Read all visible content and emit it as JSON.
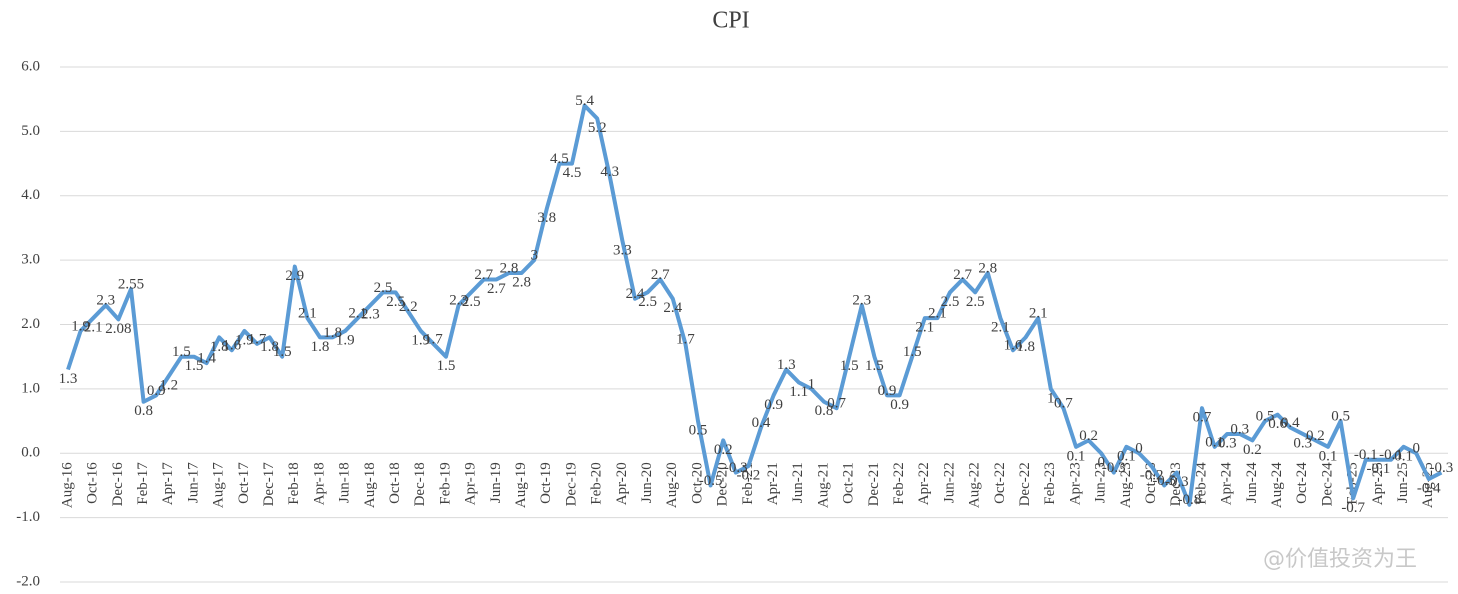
{
  "chart_data": {
    "type": "line",
    "title": "CPI",
    "categories": [
      "Aug-16",
      null,
      "Oct-16",
      null,
      "Dec-16",
      null,
      "Feb-17",
      null,
      "Apr-17",
      null,
      "Jun-17",
      null,
      "Aug-17",
      null,
      "Oct-17",
      null,
      "Dec-17",
      null,
      "Feb-18",
      null,
      "Apr-18",
      null,
      "Jun-18",
      null,
      "Aug-18",
      null,
      "Oct-18",
      null,
      "Dec-18",
      null,
      "Feb-19",
      null,
      "Apr-19",
      null,
      "Jun-19",
      null,
      "Aug-19",
      null,
      "Oct-19",
      null,
      "Dec-19",
      null,
      "Feb-20",
      null,
      "Apr-20",
      null,
      "Jun-20",
      null,
      "Aug-20",
      null,
      "Oct-20",
      null,
      "Dec-20",
      null,
      "Feb-21",
      null,
      "Apr-21",
      null,
      "Jun-21",
      null,
      "Aug-21",
      null,
      "Oct-21",
      null,
      "Dec-21",
      null,
      "Feb-22",
      null,
      "Apr-22",
      null,
      "Jun-22",
      null,
      "Aug-22",
      null,
      "Oct-22",
      null,
      "Dec-22",
      null,
      "Feb-23",
      null,
      "Apr-23",
      null,
      "Jun-23",
      null,
      "Aug-23",
      null,
      "Oct-23",
      null,
      "Dec-23",
      null,
      "Feb-24",
      null,
      "Apr-24",
      null,
      "Jun-24",
      null,
      "Aug-24",
      null,
      "Oct-24",
      null,
      "Dec-24",
      null,
      "Feb-25",
      null,
      "Apr-25",
      null,
      "Jun-25",
      null,
      "Aug-25",
      null
    ],
    "series": [
      {
        "name": "CPI",
        "color": "#5b9bd5",
        "values": [
          1.3,
          1.9,
          2.1,
          2.3,
          2.08,
          2.55,
          0.8,
          0.9,
          1.2,
          1.5,
          1.5,
          1.4,
          1.8,
          1.6,
          1.9,
          1.7,
          1.8,
          1.5,
          2.9,
          2.1,
          1.8,
          1.8,
          1.9,
          2.1,
          2.3,
          2.5,
          2.5,
          2.2,
          1.9,
          1.7,
          1.5,
          2.3,
          2.5,
          2.7,
          2.7,
          2.8,
          2.8,
          3,
          3.8,
          4.5,
          4.5,
          5.4,
          5.2,
          4.3,
          3.3,
          2.4,
          2.5,
          2.7,
          2.4,
          1.7,
          0.5,
          -0.5,
          0.2,
          -0.3,
          -0.2,
          0.4,
          0.9,
          1.3,
          1.1,
          1,
          0.8,
          0.7,
          1.5,
          2.3,
          1.5,
          0.9,
          0.9,
          1.5,
          2.1,
          2.1,
          2.5,
          2.7,
          2.5,
          2.8,
          2.1,
          1.6,
          1.8,
          2.1,
          1,
          0.7,
          0.1,
          0.2,
          0,
          -0.3,
          0.1,
          0,
          -0.2,
          -0.5,
          -0.3,
          -0.8,
          0.7,
          0.1,
          0.3,
          0.3,
          0.2,
          0.5,
          0.6,
          0.4,
          0.3,
          0.2,
          0.1,
          0.5,
          -0.7,
          -0.1,
          -0.1,
          -0.1,
          0.1,
          0,
          -0.4,
          -0.3
        ]
      }
    ],
    "ylim": [
      -2,
      6
    ],
    "yticks": [
      {
        "value": -2,
        "label": "-2.0"
      },
      {
        "value": -1,
        "label": "-1.0"
      },
      {
        "value": 0,
        "label": "0.0"
      },
      {
        "value": 1,
        "label": "1.0"
      },
      {
        "value": 2,
        "label": "2.0"
      },
      {
        "value": 3,
        "label": "3.0"
      },
      {
        "value": 4,
        "label": "4.0"
      },
      {
        "value": 5,
        "label": "5.0"
      },
      {
        "value": 6,
        "label": "6.0"
      }
    ],
    "grid": true,
    "watermark": "@价值投资为王"
  }
}
